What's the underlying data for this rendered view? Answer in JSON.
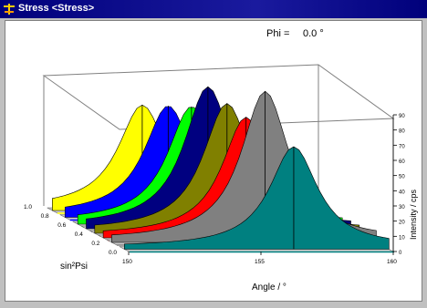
{
  "window": {
    "title": "Stress <Stress>"
  },
  "plot": {
    "phi_label": "Phi =",
    "phi_value": "0.0 °",
    "x_axis_label": "Angle / °",
    "y_axis_label": "sin²Psi",
    "z_axis_label": "Intensity / cps"
  },
  "chart_data": {
    "type": "area",
    "subtype": "3d-waterfall",
    "x": {
      "label": "Angle / °",
      "ticks": [
        150,
        155,
        160
      ],
      "range": [
        150,
        160
      ]
    },
    "y": {
      "label": "sin²Psi",
      "ticks": [
        0.0,
        0.2,
        0.4,
        0.6,
        0.8,
        1.0
      ],
      "range": [
        0.0,
        1.0
      ]
    },
    "z": {
      "label": "Intensity / cps",
      "ticks": [
        0,
        10,
        20,
        30,
        40,
        50,
        60,
        70,
        80,
        90
      ],
      "range": [
        0,
        90
      ]
    },
    "series": [
      {
        "psi_sin2": 0.9,
        "peak_angle": 153.4,
        "peak_intensity": 68,
        "color": "#ffff00"
      },
      {
        "psi_sin2": 0.75,
        "peak_angle": 153.9,
        "peak_intensity": 72,
        "color": "#0000ff"
      },
      {
        "psi_sin2": 0.6,
        "peak_angle": 154.3,
        "peak_intensity": 76,
        "color": "#00ff00"
      },
      {
        "psi_sin2": 0.5,
        "peak_angle": 154.6,
        "peak_intensity": 92,
        "color": "#000080"
      },
      {
        "psi_sin2": 0.4,
        "peak_angle": 155.0,
        "peak_intensity": 84,
        "color": "#808000"
      },
      {
        "psi_sin2": 0.3,
        "peak_angle": 155.4,
        "peak_intensity": 78,
        "color": "#ff0000"
      },
      {
        "psi_sin2": 0.2,
        "peak_angle": 155.8,
        "peak_intensity": 98,
        "color": "#808080"
      },
      {
        "psi_sin2": 0.05,
        "peak_angle": 156.4,
        "peak_intensity": 66,
        "color": "#008080"
      }
    ]
  }
}
